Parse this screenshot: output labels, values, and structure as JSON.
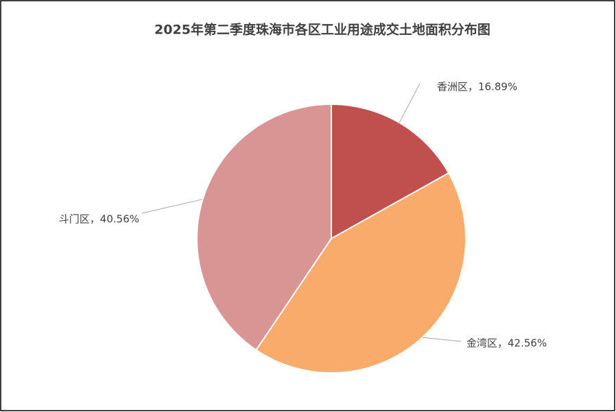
{
  "chart_data": {
    "type": "pie",
    "title": "2025年第二季度珠海市各区工业用途成交土地面积分布图",
    "values": [
      16.89,
      42.56,
      40.56
    ],
    "value_labels": [
      "香洲区，16.89%",
      "金湾区，42.56%",
      "斗门区，40.56%"
    ],
    "colors": [
      "#c0504d",
      "#f8ab6b",
      "#d99594"
    ]
  }
}
